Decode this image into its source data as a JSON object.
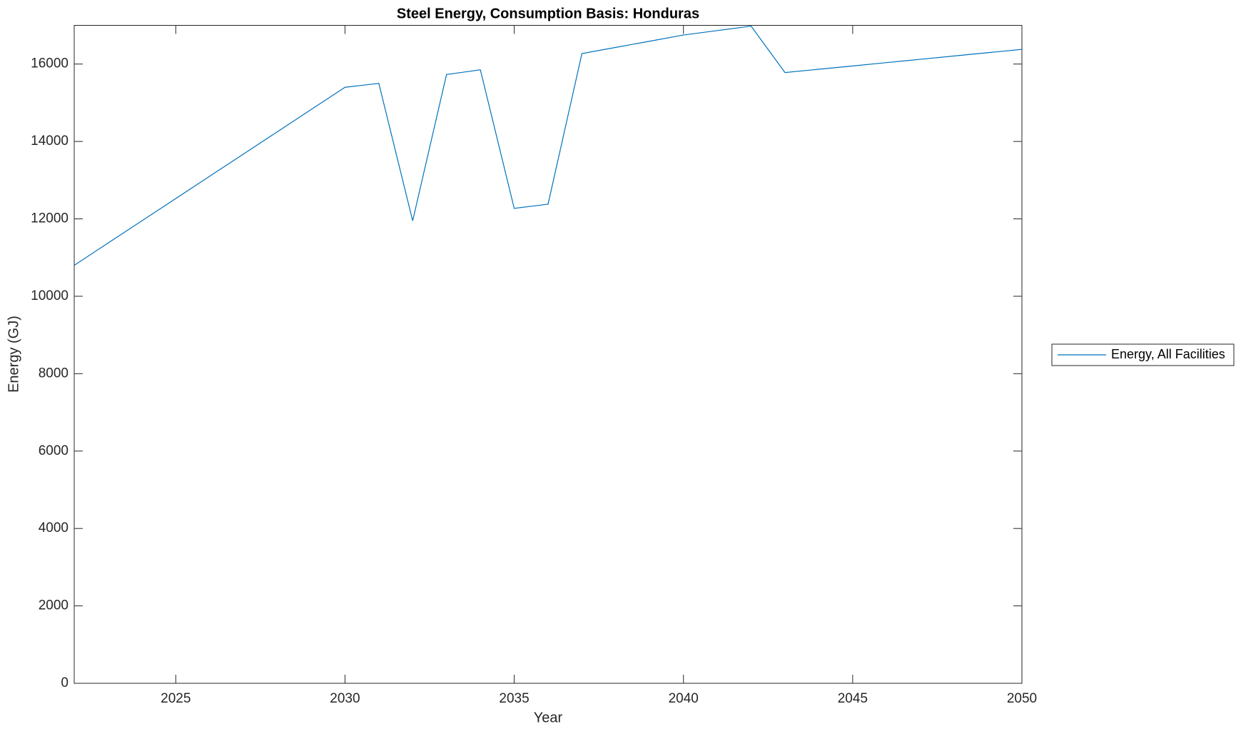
{
  "chart_data": {
    "type": "line",
    "title": "Steel Energy, Consumption Basis: Honduras",
    "x_label": "Year",
    "y_label": "Energy (GJ)",
    "x": [
      2022,
      2023,
      2024,
      2025,
      2026,
      2027,
      2028,
      2029,
      2030,
      2031,
      2032,
      2033,
      2034,
      2035,
      2036,
      2037,
      2038,
      2039,
      2040,
      2041,
      2042,
      2043,
      2044,
      2045,
      2046,
      2047,
      2048,
      2049,
      2050
    ],
    "series": [
      {
        "name": "Energy, All Facilities",
        "color": "#0072bd",
        "values": [
          10800,
          11375,
          11950,
          12525,
          13100,
          13675,
          14250,
          14825,
          15400,
          15500,
          11950,
          15730,
          15850,
          12270,
          12380,
          16270,
          16430,
          16590,
          16750,
          16865,
          16980,
          15780,
          15866,
          15951,
          16037,
          16123,
          16209,
          16294,
          16380
        ]
      }
    ],
    "xlim": [
      2022,
      2050
    ],
    "xticks": [
      2025,
      2030,
      2035,
      2040,
      2045,
      2050
    ],
    "ylim": [
      0,
      17000
    ],
    "yticks": [
      0,
      2000,
      4000,
      6000,
      8000,
      10000,
      12000,
      14000,
      16000
    ],
    "legend": "east-outside",
    "grid": false
  }
}
